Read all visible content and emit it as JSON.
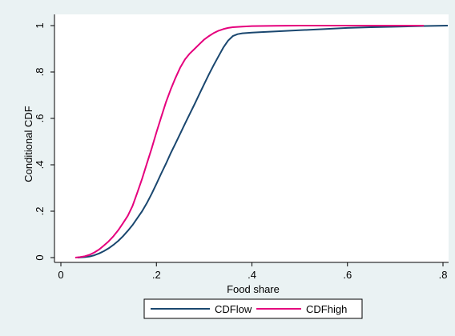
{
  "chart_data": {
    "type": "line",
    "title": "",
    "xlabel": "Food share",
    "ylabel": "Conditional CDF",
    "xlim": [
      0,
      0.8
    ],
    "ylim": [
      0,
      1
    ],
    "x_ticks": [
      0,
      0.2,
      0.4,
      0.6,
      0.8
    ],
    "x_tick_labels": [
      "0",
      ".2",
      ".4",
      ".6",
      ".8"
    ],
    "y_ticks": [
      0,
      0.2,
      0.4,
      0.6,
      0.8,
      1
    ],
    "y_tick_labels": [
      "0",
      ".2",
      ".4",
      ".6",
      ".8",
      "1"
    ],
    "grid": false,
    "legend_position": "bottom",
    "series": [
      {
        "name": "CDFlow",
        "color": "#1a476f",
        "x": [
          0.035,
          0.05,
          0.06,
          0.07,
          0.08,
          0.09,
          0.1,
          0.11,
          0.12,
          0.13,
          0.14,
          0.15,
          0.16,
          0.17,
          0.18,
          0.19,
          0.2,
          0.21,
          0.22,
          0.23,
          0.24,
          0.25,
          0.26,
          0.27,
          0.28,
          0.29,
          0.3,
          0.31,
          0.32,
          0.33,
          0.34,
          0.35,
          0.36,
          0.37,
          0.38,
          0.4,
          0.42,
          0.45,
          0.5,
          0.55,
          0.6,
          0.65,
          0.7,
          0.75,
          0.81
        ],
        "y": [
          0.0,
          0.002,
          0.005,
          0.01,
          0.018,
          0.028,
          0.04,
          0.055,
          0.072,
          0.092,
          0.115,
          0.14,
          0.17,
          0.2,
          0.235,
          0.275,
          0.318,
          0.362,
          0.405,
          0.45,
          0.492,
          0.535,
          0.578,
          0.62,
          0.662,
          0.705,
          0.748,
          0.79,
          0.83,
          0.868,
          0.905,
          0.935,
          0.955,
          0.963,
          0.967,
          0.97,
          0.972,
          0.975,
          0.98,
          0.985,
          0.99,
          0.993,
          0.995,
          0.998,
          1.0
        ]
      },
      {
        "name": "CDFhigh",
        "color": "#e5007d",
        "x": [
          0.03,
          0.04,
          0.05,
          0.06,
          0.07,
          0.08,
          0.09,
          0.1,
          0.11,
          0.12,
          0.13,
          0.14,
          0.15,
          0.16,
          0.17,
          0.18,
          0.19,
          0.2,
          0.21,
          0.22,
          0.23,
          0.24,
          0.25,
          0.26,
          0.27,
          0.28,
          0.29,
          0.3,
          0.31,
          0.32,
          0.33,
          0.34,
          0.35,
          0.36,
          0.38,
          0.4,
          0.45,
          0.5,
          0.6,
          0.7,
          0.76
        ],
        "y": [
          0.0,
          0.002,
          0.006,
          0.012,
          0.022,
          0.035,
          0.052,
          0.07,
          0.092,
          0.118,
          0.148,
          0.18,
          0.222,
          0.28,
          0.34,
          0.405,
          0.47,
          0.54,
          0.605,
          0.67,
          0.725,
          0.775,
          0.82,
          0.855,
          0.88,
          0.9,
          0.92,
          0.94,
          0.955,
          0.968,
          0.978,
          0.985,
          0.99,
          0.993,
          0.996,
          0.998,
          0.999,
          1.0,
          1.0,
          1.0,
          1.0
        ]
      }
    ]
  }
}
